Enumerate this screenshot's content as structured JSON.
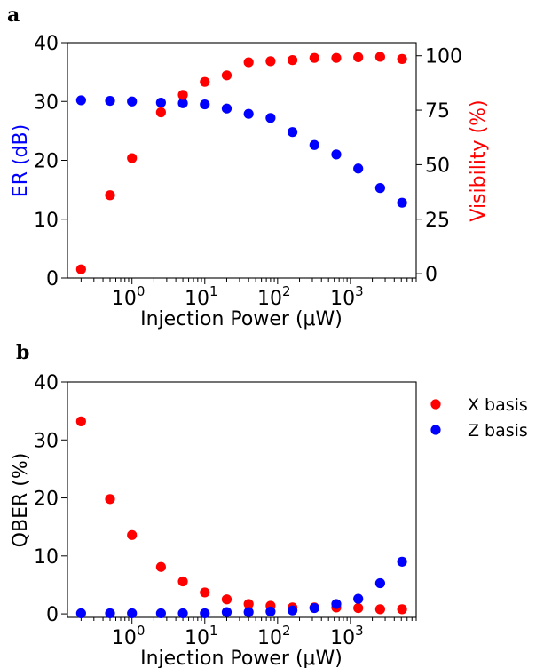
{
  "panels": [
    {
      "letter": "a"
    },
    {
      "letter": "b"
    }
  ],
  "colors": {
    "blue": "#0000ff",
    "red": "#ff0000",
    "black": "#000000"
  },
  "chart_data": [
    {
      "type": "scatter",
      "xlabel": "Injection Power (μW)",
      "xscale": "log",
      "xlim": [
        0.13,
        8000
      ],
      "x_major_ticks": [
        1,
        10,
        100,
        1000
      ],
      "x_tick_labels": [
        {
          "base": "10",
          "exp": "0"
        },
        {
          "base": "10",
          "exp": "1"
        },
        {
          "base": "10",
          "exp": "2"
        },
        {
          "base": "10",
          "exp": "3"
        }
      ],
      "y_left": {
        "label": "ER (dB)",
        "lim": [
          0,
          40
        ],
        "ticks": [
          0,
          10,
          20,
          30,
          40
        ],
        "tick_labels": [
          "0",
          "10",
          "20",
          "30",
          "40"
        ],
        "color": "#0000ff"
      },
      "y_right": {
        "label": "Visibility (%)",
        "lim": [
          -2,
          106
        ],
        "ticks": [
          0,
          25,
          50,
          75,
          100
        ],
        "tick_labels": [
          "0",
          "25",
          "50",
          "75",
          "100"
        ],
        "color": "#ff0000"
      },
      "x": [
        0.2,
        0.5,
        1,
        2.5,
        5,
        10,
        20,
        40,
        80,
        160,
        320,
        640,
        1280,
        2560,
        5120
      ],
      "series": [
        {
          "axis": "left",
          "color": "#0000ff",
          "values": [
            30.2,
            30.1,
            30.0,
            29.8,
            29.7,
            29.5,
            28.8,
            27.9,
            27.2,
            24.8,
            22.6,
            21.0,
            18.6,
            15.3,
            12.8
          ]
        },
        {
          "axis": "right",
          "color": "#ff0000",
          "values": [
            2,
            36,
            53,
            74,
            82,
            88,
            91,
            97,
            97.5,
            98,
            99,
            99,
            99.3,
            99.5,
            98.5
          ]
        }
      ]
    },
    {
      "type": "scatter",
      "xlabel": "Injection Power (μW)",
      "xscale": "log",
      "xlim": [
        0.13,
        8000
      ],
      "x_major_ticks": [
        1,
        10,
        100,
        1000
      ],
      "x_tick_labels": [
        {
          "base": "10",
          "exp": "0"
        },
        {
          "base": "10",
          "exp": "1"
        },
        {
          "base": "10",
          "exp": "2"
        },
        {
          "base": "10",
          "exp": "3"
        }
      ],
      "ylabel": "QBER (%)",
      "ylim": [
        -0.6,
        40
      ],
      "y_ticks": [
        0,
        10,
        20,
        30,
        40
      ],
      "y_tick_labels": [
        "0",
        "10",
        "20",
        "30",
        "40"
      ],
      "legend_position": "outside-right",
      "x": [
        0.2,
        0.5,
        1,
        2.5,
        5,
        10,
        20,
        40,
        80,
        160,
        320,
        640,
        1280,
        2560,
        5120
      ],
      "series": [
        {
          "name": "X basis",
          "color": "#ff0000",
          "values": [
            33.2,
            19.8,
            13.6,
            8.1,
            5.6,
            3.7,
            2.5,
            1.7,
            1.4,
            1.1,
            1.1,
            1.1,
            1.0,
            0.8,
            0.8
          ]
        },
        {
          "name": "Z basis",
          "color": "#0000ff",
          "values": [
            0.1,
            0.1,
            0.1,
            0.1,
            0.1,
            0.1,
            0.3,
            0.3,
            0.4,
            0.6,
            1.0,
            1.7,
            2.6,
            5.3,
            9.0
          ]
        }
      ]
    }
  ]
}
